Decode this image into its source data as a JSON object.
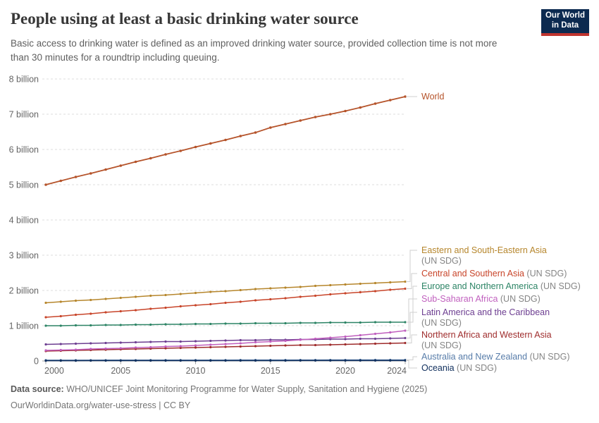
{
  "header": {
    "title": "People using at least a basic drinking water source",
    "subtitle": "Basic access to drinking water is defined as an improved drinking water source, provided collection time is not more than 30 minutes for a roundtrip including queuing.",
    "logo": {
      "line1": "Our World",
      "line2": "in Data"
    }
  },
  "footer": {
    "source_label": "Data source:",
    "source_text": "WHO/UNICEF Joint Monitoring Programme for Water Supply, Sanitation and Hygiene (2025)",
    "url_line": "OurWorldinData.org/water-use-stress | CC BY"
  },
  "chart_data": {
    "type": "line",
    "unit": "billion people",
    "x": [
      2000,
      2001,
      2002,
      2003,
      2004,
      2005,
      2006,
      2007,
      2008,
      2009,
      2010,
      2011,
      2012,
      2013,
      2014,
      2015,
      2016,
      2017,
      2018,
      2019,
      2020,
      2021,
      2022,
      2023,
      2024
    ],
    "xticks": [
      2000,
      2005,
      2010,
      2015,
      2020,
      2024
    ],
    "yticks": [
      {
        "value": 8,
        "label": "8 billion"
      },
      {
        "value": 7,
        "label": "7 billion"
      },
      {
        "value": 6,
        "label": "6 billion"
      },
      {
        "value": 5,
        "label": "5 billion"
      },
      {
        "value": 4,
        "label": "4 billion"
      },
      {
        "value": 3,
        "label": "3 billion"
      },
      {
        "value": 2,
        "label": "2 billion"
      },
      {
        "value": 1,
        "label": "1 billion"
      },
      {
        "value": 0,
        "label": "0"
      }
    ],
    "xlim": [
      2000,
      2024
    ],
    "ylim": [
      0,
      8
    ],
    "grid": "horizontal-dashed",
    "legend_position": "right",
    "series": [
      {
        "name": "World",
        "suffix": "",
        "color": "#B5532A",
        "values": [
          5.0,
          5.11,
          5.22,
          5.32,
          5.43,
          5.54,
          5.65,
          5.75,
          5.86,
          5.96,
          6.07,
          6.17,
          6.27,
          6.38,
          6.48,
          6.62,
          6.72,
          6.82,
          6.92,
          7.0,
          7.09,
          7.19,
          7.3,
          7.4,
          7.5
        ]
      },
      {
        "name": "Eastern and South-Eastern Asia",
        "suffix": "(UN SDG)",
        "color": "#B6862C",
        "values": [
          1.65,
          1.68,
          1.71,
          1.73,
          1.76,
          1.79,
          1.82,
          1.85,
          1.87,
          1.9,
          1.93,
          1.96,
          1.98,
          2.01,
          2.04,
          2.06,
          2.08,
          2.1,
          2.13,
          2.15,
          2.17,
          2.19,
          2.21,
          2.23,
          2.25
        ]
      },
      {
        "name": "Central and Southern Asia",
        "suffix": "(UN SDG)",
        "color": "#C8452A",
        "values": [
          1.24,
          1.27,
          1.31,
          1.34,
          1.38,
          1.41,
          1.44,
          1.48,
          1.51,
          1.55,
          1.58,
          1.61,
          1.65,
          1.68,
          1.72,
          1.75,
          1.78,
          1.82,
          1.85,
          1.89,
          1.92,
          1.95,
          1.98,
          2.02,
          2.05
        ]
      },
      {
        "name": "Europe and Northern America",
        "suffix": "(UN SDG)",
        "color": "#2C8465",
        "values": [
          1.0,
          1.0,
          1.01,
          1.01,
          1.02,
          1.02,
          1.03,
          1.03,
          1.04,
          1.04,
          1.05,
          1.05,
          1.06,
          1.06,
          1.07,
          1.07,
          1.07,
          1.08,
          1.08,
          1.09,
          1.09,
          1.09,
          1.1,
          1.1,
          1.1
        ]
      },
      {
        "name": "Sub-Saharan Africa",
        "suffix": "(UN SDG)",
        "color": "#C05FBE",
        "values": [
          0.3,
          0.31,
          0.32,
          0.34,
          0.35,
          0.36,
          0.38,
          0.39,
          0.41,
          0.42,
          0.44,
          0.46,
          0.48,
          0.5,
          0.53,
          0.55,
          0.57,
          0.6,
          0.63,
          0.66,
          0.69,
          0.73,
          0.77,
          0.81,
          0.86
        ]
      },
      {
        "name": "Latin America and the Caribbean",
        "suffix": "(UN SDG)",
        "color": "#6D3E91",
        "values": [
          0.47,
          0.48,
          0.49,
          0.5,
          0.51,
          0.52,
          0.53,
          0.54,
          0.55,
          0.55,
          0.56,
          0.57,
          0.58,
          0.59,
          0.59,
          0.6,
          0.6,
          0.61,
          0.61,
          0.62,
          0.62,
          0.63,
          0.63,
          0.64,
          0.65
        ]
      },
      {
        "name": "Northern Africa and Western Asia",
        "suffix": "(UN SDG)",
        "color": "#9E2B2B",
        "values": [
          0.28,
          0.29,
          0.3,
          0.31,
          0.32,
          0.33,
          0.34,
          0.35,
          0.36,
          0.37,
          0.38,
          0.39,
          0.4,
          0.41,
          0.42,
          0.43,
          0.44,
          0.45,
          0.45,
          0.46,
          0.47,
          0.48,
          0.49,
          0.5,
          0.51
        ]
      },
      {
        "name": "Australia and New Zealand",
        "suffix": "(UN SDG)",
        "color": "#577CA9",
        "values": [
          0.022,
          0.022,
          0.023,
          0.023,
          0.024,
          0.024,
          0.024,
          0.025,
          0.025,
          0.025,
          0.026,
          0.026,
          0.026,
          0.027,
          0.027,
          0.027,
          0.028,
          0.028,
          0.028,
          0.029,
          0.029,
          0.03,
          0.03,
          0.031,
          0.031
        ]
      },
      {
        "name": "Oceania",
        "suffix": "(UN SDG)",
        "color": "#0F2E5C",
        "values": [
          0.008,
          0.008,
          0.008,
          0.009,
          0.009,
          0.009,
          0.009,
          0.01,
          0.01,
          0.01,
          0.01,
          0.01,
          0.011,
          0.011,
          0.011,
          0.011,
          0.011,
          0.012,
          0.012,
          0.012,
          0.012,
          0.012,
          0.013,
          0.013,
          0.013
        ]
      }
    ]
  }
}
